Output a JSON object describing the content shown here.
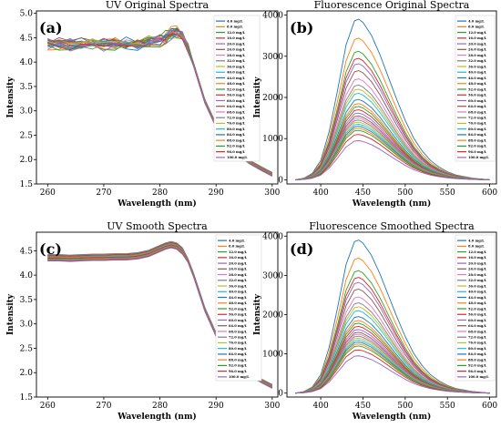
{
  "series_names": [
    "4.0 mg/L",
    "8.0 mg/L",
    "12.0 mg/L",
    "16.0 mg/L",
    "20.0 mg/L",
    "24.0 mg/L",
    "28.0 mg/L",
    "32.0 mg/L",
    "36.0 mg/L",
    "40.0 mg/L",
    "44.0 mg/L",
    "48.0 mg/L",
    "52.0 mg/L",
    "56.0 mg/L",
    "60.0 mg/L",
    "64.0 mg/L",
    "68.0 mg/L",
    "72.0 mg/L",
    "76.0 mg/L",
    "80.0 mg/L",
    "84.0 mg/L",
    "88.0 mg/L",
    "92.0 mg/L",
    "96.0 mg/L",
    "100.0 mg/L"
  ],
  "colors": [
    "#1f77b4",
    "#ff7f0e",
    "#2ca02c",
    "#d62728",
    "#9467bd",
    "#8c564b",
    "#e377c2",
    "#7f7f7f",
    "#bcbd22",
    "#17becf",
    "#1f77b4",
    "#ff7f0e",
    "#2ca02c",
    "#d62728",
    "#9467bd",
    "#8c564b",
    "#e377c2",
    "#7f7f7f",
    "#bcbd22",
    "#17becf",
    "#1f77b4",
    "#ff7f0e",
    "#2ca02c",
    "#d62728",
    "#9467bd"
  ],
  "chart_data": [
    {
      "type": "line",
      "panel": "(a)",
      "title": "UV Original Spectra",
      "xlabel": "Wavelength (nm)",
      "ylabel": "Intensity",
      "xlim": [
        258,
        301
      ],
      "ylim": [
        1.5,
        5.05
      ],
      "xticks": [
        260,
        270,
        280,
        290,
        300
      ],
      "yticks": [
        1.5,
        2.0,
        2.5,
        3.0,
        3.5,
        4.0,
        4.5,
        5.0
      ],
      "legend": "right",
      "noisy": true,
      "x": [
        260,
        262,
        264,
        266,
        268,
        270,
        272,
        274,
        276,
        278,
        280,
        281,
        282,
        283,
        284,
        285,
        286,
        288,
        290,
        292,
        294,
        296,
        298,
        300
      ],
      "base_values": [
        4.38,
        4.38,
        4.37,
        4.38,
        4.38,
        4.37,
        4.38,
        4.37,
        4.38,
        4.4,
        4.45,
        4.52,
        4.6,
        4.62,
        4.55,
        4.3,
        3.95,
        3.2,
        2.7,
        2.35,
        2.12,
        1.95,
        1.82,
        1.7
      ],
      "offsets": [
        0.06,
        0.05,
        0.04,
        0.04,
        0.03,
        0.03,
        0.02,
        0.02,
        0.01,
        0.01,
        0.0,
        0.0,
        -0.01,
        -0.01,
        -0.02,
        -0.02,
        -0.03,
        -0.03,
        -0.04,
        -0.04,
        -0.05,
        -0.05,
        -0.06,
        -0.06,
        -0.07
      ]
    },
    {
      "type": "line",
      "panel": "(b)",
      "title": "Fluorescence Original Spectra",
      "xlabel": "Wavelength (nm)",
      "ylabel": "Intensity",
      "xlim": [
        360,
        608
      ],
      "ylim": [
        -100,
        4100
      ],
      "xticks": [
        400,
        450,
        500,
        550,
        600
      ],
      "yticks": [
        0,
        1000,
        2000,
        3000,
        4000
      ],
      "legend": "right",
      "noisy": false,
      "x": [
        370,
        380,
        390,
        400,
        410,
        420,
        430,
        440,
        445,
        450,
        460,
        470,
        480,
        490,
        500,
        510,
        520,
        530,
        540,
        550,
        560,
        570,
        580,
        590,
        600
      ],
      "profile": [
        0.0,
        0.01,
        0.04,
        0.12,
        0.3,
        0.56,
        0.84,
        0.99,
        1.0,
        0.98,
        0.9,
        0.78,
        0.64,
        0.5,
        0.37,
        0.26,
        0.18,
        0.12,
        0.08,
        0.05,
        0.03,
        0.02,
        0.01,
        0.005,
        0.0
      ],
      "peaks": [
        3900,
        3440,
        3120,
        2950,
        2820,
        2650,
        2450,
        2300,
        2200,
        2100,
        1950,
        1850,
        1780,
        1700,
        1620,
        1550,
        1500,
        1450,
        1400,
        1350,
        1300,
        1250,
        1200,
        1100,
        950
      ]
    },
    {
      "type": "line",
      "panel": "(c)",
      "title": "UV Smooth Spectra",
      "xlabel": "Wavelength (nm)",
      "ylabel": "Intensity",
      "xlim": [
        258,
        301
      ],
      "ylim": [
        1.5,
        4.88
      ],
      "xticks": [
        260,
        270,
        280,
        290,
        300
      ],
      "yticks": [
        1.5,
        2.0,
        2.5,
        3.0,
        3.5,
        4.0,
        4.5
      ],
      "legend": "right",
      "noisy": false,
      "x": [
        260,
        262,
        264,
        266,
        268,
        270,
        272,
        274,
        276,
        278,
        280,
        281,
        282,
        283,
        284,
        285,
        286,
        288,
        290,
        292,
        294,
        296,
        298,
        300
      ],
      "base_values": [
        4.36,
        4.36,
        4.35,
        4.36,
        4.37,
        4.37,
        4.38,
        4.38,
        4.4,
        4.45,
        4.55,
        4.6,
        4.63,
        4.6,
        4.5,
        4.3,
        4.0,
        3.3,
        2.78,
        2.4,
        2.15,
        1.97,
        1.84,
        1.72
      ],
      "offsets": [
        0.06,
        0.05,
        0.04,
        0.04,
        0.03,
        0.03,
        0.02,
        0.02,
        0.01,
        0.01,
        0.0,
        0.0,
        -0.01,
        -0.01,
        -0.02,
        -0.02,
        -0.03,
        -0.03,
        -0.04,
        -0.04,
        -0.05,
        -0.05,
        -0.06,
        -0.06,
        -0.07
      ]
    },
    {
      "type": "line",
      "panel": "(d)",
      "title": "Fluorescence Smoothed Spectra",
      "xlabel": "Wavelength (nm)",
      "ylabel": "Intensity",
      "xlim": [
        360,
        608
      ],
      "ylim": [
        -100,
        4100
      ],
      "xticks": [
        400,
        450,
        500,
        550,
        600
      ],
      "yticks": [
        0,
        1000,
        2000,
        3000,
        4000
      ],
      "legend": "right",
      "noisy": false,
      "x": [
        370,
        380,
        390,
        400,
        410,
        420,
        430,
        440,
        445,
        450,
        460,
        470,
        480,
        490,
        500,
        510,
        520,
        530,
        540,
        550,
        560,
        570,
        580,
        590,
        600
      ],
      "profile": [
        0.0,
        0.01,
        0.04,
        0.12,
        0.3,
        0.56,
        0.84,
        0.99,
        1.0,
        0.98,
        0.9,
        0.78,
        0.64,
        0.5,
        0.37,
        0.26,
        0.18,
        0.12,
        0.08,
        0.05,
        0.03,
        0.02,
        0.01,
        0.005,
        0.0
      ],
      "peaks": [
        3900,
        3440,
        3120,
        2950,
        2820,
        2650,
        2450,
        2300,
        2200,
        2100,
        1950,
        1850,
        1780,
        1700,
        1620,
        1550,
        1500,
        1450,
        1400,
        1350,
        1300,
        1250,
        1200,
        1100,
        950
      ]
    }
  ]
}
